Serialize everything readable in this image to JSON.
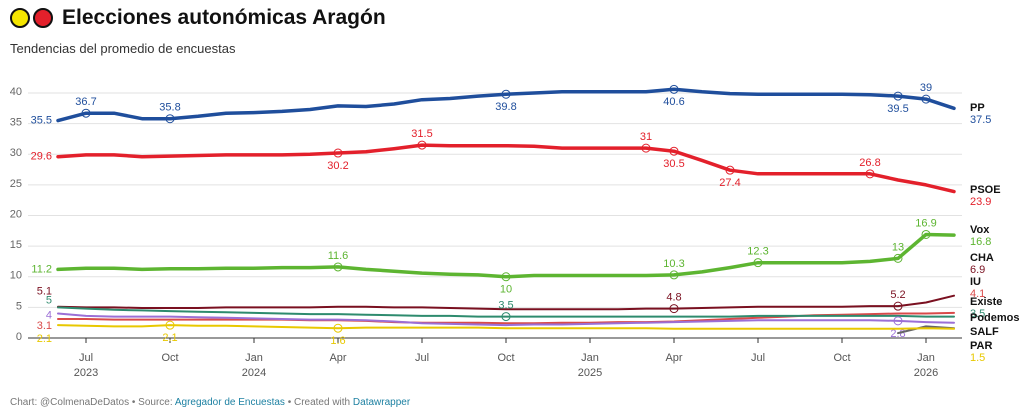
{
  "title": "Elecciones autonómicas Aragón",
  "subtitle": "Tendencias del promedio de encuestas",
  "footer": {
    "credit": "Chart: @ColmenaDeDatos • Source:",
    "source": "Agregador de Encuestas",
    "created": "• Created with",
    "tool": "Datawrapper"
  },
  "chart_data": {
    "type": "line",
    "grid": true,
    "x": [
      "2023-06",
      "2023-07",
      "2023-08",
      "2023-09",
      "2023-10",
      "2023-11",
      "2023-12",
      "2024-01",
      "2024-02",
      "2024-03",
      "2024-04",
      "2024-05",
      "2024-06",
      "2024-07",
      "2024-08",
      "2024-09",
      "2024-10",
      "2024-11",
      "2024-12",
      "2025-01",
      "2025-02",
      "2025-03",
      "2025-04",
      "2025-05",
      "2025-06",
      "2025-07",
      "2025-08",
      "2025-09",
      "2025-10",
      "2025-11",
      "2025-12",
      "2026-01",
      "2026-02"
    ],
    "xlim": [
      "2023-06",
      "2026-02"
    ],
    "xticks": [
      {
        "value": "2023-07",
        "label": "Jul",
        "year": "2023"
      },
      {
        "value": "2023-10",
        "label": "Oct"
      },
      {
        "value": "2024-01",
        "label": "Jan",
        "year": "2024"
      },
      {
        "value": "2024-04",
        "label": "Apr"
      },
      {
        "value": "2024-07",
        "label": "Jul"
      },
      {
        "value": "2024-10",
        "label": "Oct"
      },
      {
        "value": "2025-01",
        "label": "Jan",
        "year": "2025"
      },
      {
        "value": "2025-04",
        "label": "Apr"
      },
      {
        "value": "2025-07",
        "label": "Jul"
      },
      {
        "value": "2025-10",
        "label": "Oct"
      },
      {
        "value": "2026-01",
        "label": "Jan",
        "year": "2026"
      }
    ],
    "ylim": [
      0,
      40
    ],
    "yticks": [
      0,
      5,
      10,
      15,
      20,
      25,
      30,
      35,
      40
    ],
    "series": [
      {
        "name": "PP",
        "color": "#1f4e9c",
        "values": [
          35.5,
          36.7,
          36.7,
          35.8,
          35.8,
          36.2,
          36.7,
          36.8,
          37.0,
          37.3,
          37.9,
          37.8,
          38.2,
          38.9,
          39.1,
          39.5,
          39.8,
          40.0,
          40.2,
          40.2,
          40.2,
          40.2,
          40.6,
          40.2,
          39.9,
          39.8,
          39.8,
          39.8,
          39.8,
          39.7,
          39.5,
          39.0,
          37.5
        ],
        "value_labels": [
          "35.5",
          "36.7",
          null,
          null,
          "35.8",
          null,
          null,
          null,
          null,
          null,
          null,
          null,
          null,
          null,
          null,
          null,
          "39.8",
          null,
          null,
          null,
          null,
          null,
          "40.6",
          null,
          null,
          null,
          null,
          null,
          null,
          null,
          "39.5",
          "39",
          "37.5"
        ]
      },
      {
        "name": "PSOE",
        "color": "#e3202b",
        "values": [
          29.6,
          29.9,
          29.9,
          29.6,
          29.7,
          29.8,
          29.9,
          29.9,
          29.9,
          30.0,
          30.2,
          30.4,
          30.9,
          31.5,
          31.4,
          31.4,
          31.4,
          31.3,
          31.0,
          31.0,
          31.0,
          31.0,
          30.5,
          29.0,
          27.4,
          26.8,
          26.8,
          26.8,
          26.8,
          26.8,
          25.8,
          25.0,
          23.9
        ],
        "value_labels": [
          "29.6",
          null,
          null,
          null,
          null,
          null,
          null,
          null,
          null,
          null,
          "30.2",
          null,
          null,
          "31.5",
          null,
          null,
          null,
          null,
          null,
          null,
          null,
          "31",
          "30.5",
          null,
          "27.4",
          null,
          null,
          null,
          null,
          "26.8",
          null,
          null,
          "23.9"
        ]
      },
      {
        "name": "Vox",
        "color": "#5db531",
        "values": [
          11.2,
          11.4,
          11.4,
          11.2,
          11.3,
          11.3,
          11.4,
          11.4,
          11.5,
          11.5,
          11.6,
          11.2,
          10.9,
          10.6,
          10.4,
          10.3,
          10.0,
          10.2,
          10.2,
          10.2,
          10.2,
          10.2,
          10.3,
          10.8,
          11.5,
          12.3,
          12.3,
          12.3,
          12.3,
          12.5,
          13.0,
          16.9,
          16.8
        ],
        "value_labels": [
          "11.2",
          null,
          null,
          null,
          null,
          null,
          null,
          null,
          null,
          null,
          "11.6",
          null,
          null,
          null,
          null,
          null,
          "10",
          null,
          null,
          null,
          null,
          null,
          "10.3",
          null,
          null,
          "12.3",
          null,
          null,
          null,
          null,
          "13",
          "16.9",
          "16.8"
        ]
      },
      {
        "name": "CHA",
        "color": "#7a1020",
        "values": [
          5.1,
          5.0,
          5.0,
          4.9,
          4.9,
          4.9,
          5.0,
          5.0,
          5.0,
          5.0,
          5.1,
          5.1,
          5.0,
          5.0,
          4.9,
          4.8,
          4.7,
          4.7,
          4.7,
          4.7,
          4.7,
          4.8,
          4.8,
          4.9,
          5.0,
          5.1,
          5.1,
          5.1,
          5.1,
          5.2,
          5.2,
          5.8,
          6.9
        ],
        "value_labels": [
          "5.1",
          null,
          null,
          null,
          null,
          null,
          null,
          null,
          null,
          null,
          null,
          null,
          null,
          null,
          null,
          null,
          null,
          null,
          null,
          null,
          null,
          null,
          "4.8",
          null,
          null,
          null,
          null,
          null,
          null,
          null,
          "5.2",
          null,
          "6.9"
        ]
      },
      {
        "name": "IU",
        "color": "#d94a4a",
        "values": [
          3.1,
          3.1,
          3.0,
          3.0,
          3.0,
          3.0,
          3.0,
          3.0,
          3.0,
          2.9,
          2.9,
          2.8,
          2.6,
          2.5,
          2.5,
          2.5,
          2.4,
          2.4,
          2.5,
          2.5,
          2.6,
          2.6,
          2.7,
          2.9,
          3.1,
          3.3,
          3.5,
          3.7,
          3.8,
          3.9,
          4.0,
          4.0,
          4.1
        ],
        "value_labels": [
          "3.1",
          null,
          null,
          null,
          null,
          null,
          null,
          null,
          null,
          null,
          null,
          null,
          null,
          null,
          null,
          null,
          null,
          null,
          null,
          null,
          null,
          null,
          null,
          null,
          null,
          null,
          null,
          null,
          null,
          null,
          null,
          null,
          "4.1"
        ]
      },
      {
        "name": "Existe",
        "color": "#2e8b6e",
        "values": [
          5.0,
          4.8,
          4.6,
          4.5,
          4.4,
          4.3,
          4.2,
          4.1,
          4.0,
          3.9,
          3.9,
          3.8,
          3.7,
          3.6,
          3.6,
          3.5,
          3.5,
          3.5,
          3.5,
          3.5,
          3.5,
          3.5,
          3.5,
          3.5,
          3.5,
          3.6,
          3.6,
          3.6,
          3.6,
          3.6,
          3.6,
          3.5,
          3.5
        ],
        "value_labels": [
          "5",
          null,
          null,
          null,
          null,
          null,
          null,
          null,
          null,
          null,
          null,
          null,
          null,
          null,
          null,
          null,
          "3.5",
          null,
          null,
          null,
          null,
          null,
          null,
          null,
          null,
          null,
          null,
          null,
          null,
          null,
          null,
          null,
          "3.5"
        ]
      },
      {
        "name": "Podemos",
        "color": "#9b6fd6",
        "values": [
          4.0,
          3.6,
          3.5,
          3.5,
          3.5,
          3.4,
          3.3,
          3.2,
          3.1,
          3.0,
          3.0,
          2.9,
          2.7,
          2.4,
          2.3,
          2.2,
          2.1,
          2.2,
          2.2,
          2.3,
          2.4,
          2.5,
          2.6,
          2.7,
          2.8,
          2.9,
          2.9,
          2.9,
          2.9,
          2.9,
          2.8,
          2.6,
          2.5
        ],
        "value_labels": [
          "4",
          null,
          null,
          null,
          null,
          null,
          null,
          null,
          null,
          null,
          null,
          null,
          null,
          null,
          null,
          null,
          null,
          null,
          null,
          null,
          null,
          null,
          null,
          null,
          null,
          null,
          null,
          null,
          null,
          null,
          "2.8",
          null,
          null
        ]
      },
      {
        "name": "SALF",
        "color": "#666666",
        "values": [
          null,
          null,
          null,
          null,
          null,
          null,
          null,
          null,
          null,
          null,
          null,
          null,
          null,
          null,
          null,
          null,
          null,
          null,
          null,
          null,
          null,
          null,
          null,
          null,
          null,
          null,
          null,
          null,
          null,
          null,
          0.8,
          1.9,
          1.6
        ]
      },
      {
        "name": "PAR",
        "color": "#e8c800",
        "values": [
          2.1,
          2.0,
          1.9,
          1.9,
          2.1,
          2.0,
          2.0,
          1.9,
          1.8,
          1.7,
          1.6,
          1.7,
          1.7,
          1.7,
          1.7,
          1.7,
          1.6,
          1.6,
          1.6,
          1.6,
          1.6,
          1.6,
          1.5,
          1.5,
          1.5,
          1.5,
          1.5,
          1.5,
          1.5,
          1.5,
          1.5,
          1.6,
          1.5
        ],
        "value_labels": [
          "2.1",
          null,
          null,
          null,
          "2.1",
          null,
          null,
          null,
          null,
          null,
          "1.6",
          null,
          null,
          null,
          null,
          null,
          null,
          null,
          null,
          null,
          null,
          null,
          null,
          null,
          null,
          null,
          null,
          null,
          null,
          null,
          null,
          null,
          "1.5"
        ]
      }
    ]
  }
}
